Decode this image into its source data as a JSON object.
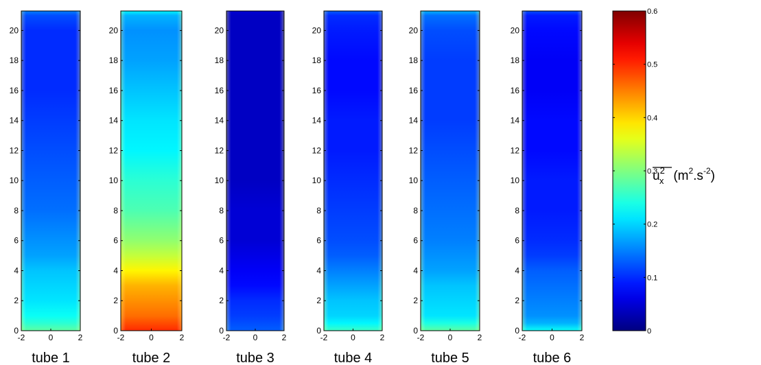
{
  "chart_data": {
    "type": "heatmap",
    "colormap": "jet",
    "color_range": [
      0,
      0.6
    ],
    "xlim": [
      -2,
      2
    ],
    "ylim": [
      0,
      21.3
    ],
    "x_ticks": [
      -2,
      0,
      2
    ],
    "x_tick_labels": [
      "-2",
      "0",
      "2"
    ],
    "y_ticks": [
      0,
      2,
      4,
      6,
      8,
      10,
      12,
      14,
      16,
      18,
      20
    ],
    "y_tick_labels": [
      "0",
      "2",
      "4",
      "6",
      "8",
      "10",
      "12",
      "14",
      "16",
      "18",
      "20"
    ],
    "y_levels": [
      0,
      0.5,
      1,
      2,
      3,
      4,
      5,
      6,
      8,
      10,
      12,
      14,
      16,
      18,
      20,
      21,
      21.3
    ],
    "colorbar": {
      "ticks": [
        0,
        0.1,
        0.2,
        0.3,
        0.4,
        0.5,
        0.6
      ],
      "tick_labels": [
        "0",
        "0.1",
        "0.2",
        "0.3",
        "0.4",
        "0.5",
        "0.6"
      ],
      "label": {
        "symbol": "u",
        "sub": "x",
        "sup": "2",
        "units_base": "(m",
        "units_sup1": "2",
        "units_mid": ".s",
        "units_sup2": "-2",
        "units_end": ")"
      }
    },
    "panels": [
      {
        "name": "tube 1",
        "profile": [
          0.28,
          0.25,
          0.23,
          0.21,
          0.2,
          0.19,
          0.17,
          0.16,
          0.14,
          0.13,
          0.12,
          0.11,
          0.1,
          0.1,
          0.1,
          0.12,
          0.15
        ]
      },
      {
        "name": "tube 2",
        "profile": [
          0.5,
          0.48,
          0.46,
          0.44,
          0.42,
          0.38,
          0.34,
          0.31,
          0.27,
          0.25,
          0.22,
          0.21,
          0.19,
          0.17,
          0.16,
          0.18,
          0.22
        ]
      },
      {
        "name": "tube 3",
        "profile": [
          0.13,
          0.12,
          0.11,
          0.1,
          0.08,
          0.07,
          0.06,
          0.05,
          0.05,
          0.04,
          0.04,
          0.04,
          0.04,
          0.04,
          0.04,
          0.04,
          0.05
        ]
      },
      {
        "name": "tube 4",
        "profile": [
          0.26,
          0.22,
          0.2,
          0.19,
          0.17,
          0.15,
          0.13,
          0.12,
          0.11,
          0.1,
          0.09,
          0.09,
          0.08,
          0.08,
          0.09,
          0.1,
          0.13
        ]
      },
      {
        "name": "tube 5",
        "profile": [
          0.28,
          0.24,
          0.21,
          0.2,
          0.19,
          0.17,
          0.16,
          0.15,
          0.14,
          0.13,
          0.12,
          0.11,
          0.11,
          0.11,
          0.12,
          0.14,
          0.18
        ]
      },
      {
        "name": "tube 6",
        "profile": [
          0.23,
          0.18,
          0.16,
          0.15,
          0.14,
          0.13,
          0.11,
          0.1,
          0.09,
          0.09,
          0.08,
          0.08,
          0.07,
          0.07,
          0.08,
          0.09,
          0.12
        ]
      }
    ]
  }
}
